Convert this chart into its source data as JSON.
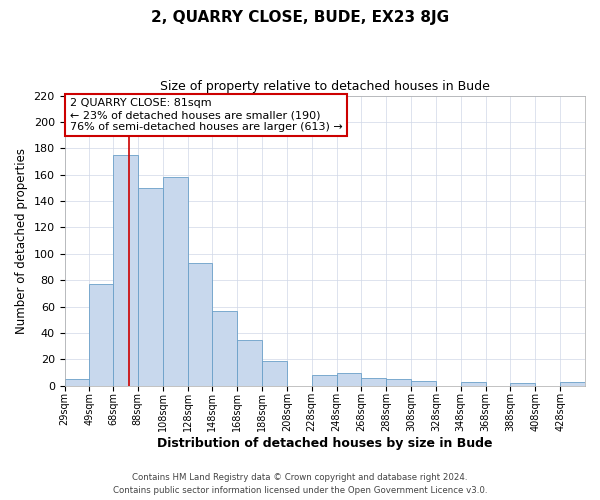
{
  "title": "2, QUARRY CLOSE, BUDE, EX23 8JG",
  "subtitle": "Size of property relative to detached houses in Bude",
  "xlabel": "Distribution of detached houses by size in Bude",
  "ylabel": "Number of detached properties",
  "footer_line1": "Contains HM Land Registry data © Crown copyright and database right 2024.",
  "footer_line2": "Contains public sector information licensed under the Open Government Licence v3.0.",
  "bin_labels": [
    "29sqm",
    "49sqm",
    "68sqm",
    "88sqm",
    "108sqm",
    "128sqm",
    "148sqm",
    "168sqm",
    "188sqm",
    "208sqm",
    "228sqm",
    "248sqm",
    "268sqm",
    "288sqm",
    "308sqm",
    "328sqm",
    "348sqm",
    "368sqm",
    "388sqm",
    "408sqm",
    "428sqm"
  ],
  "bar_values": [
    5,
    77,
    175,
    150,
    158,
    93,
    57,
    35,
    19,
    0,
    8,
    10,
    6,
    5,
    4,
    0,
    3,
    0,
    2,
    0,
    3
  ],
  "bar_color": "#c8d8ed",
  "bar_edge_color": "#6a9fc8",
  "grid_color": "#d0d8e8",
  "vline_x": 81,
  "vline_color": "#cc0000",
  "annotation_title": "2 QUARRY CLOSE: 81sqm",
  "annotation_line1": "← 23% of detached houses are smaller (190)",
  "annotation_line2": "76% of semi-detached houses are larger (613) →",
  "annotation_box_color": "#cc0000",
  "ylim": [
    0,
    220
  ],
  "yticks": [
    0,
    20,
    40,
    60,
    80,
    100,
    120,
    140,
    160,
    180,
    200,
    220
  ],
  "bin_edges": [
    29,
    49,
    68,
    88,
    108,
    128,
    148,
    168,
    188,
    208,
    228,
    248,
    268,
    288,
    308,
    328,
    348,
    368,
    388,
    408,
    428,
    448
  ]
}
